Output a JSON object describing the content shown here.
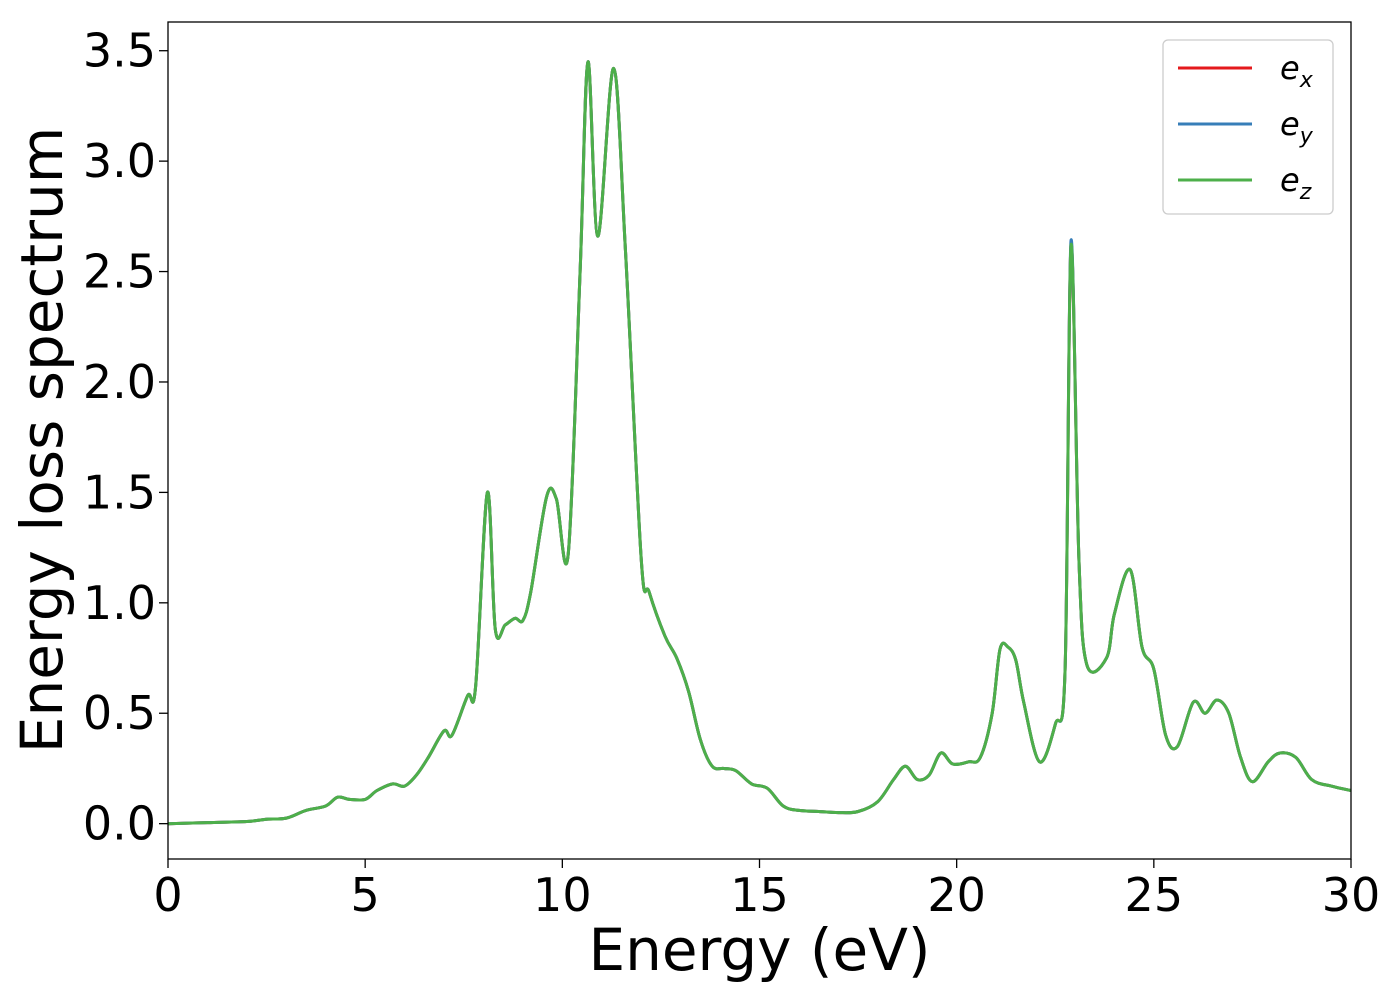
{
  "chart_data": {
    "type": "line",
    "title": "",
    "xlabel": "Energy (eV)",
    "ylabel": "Energy loss spectrum",
    "xlim": [
      0,
      30
    ],
    "ylim": [
      -0.16,
      3.63
    ],
    "x_ticks": [
      "0",
      "5",
      "10",
      "15",
      "20",
      "25",
      "30"
    ],
    "y_ticks": [
      "0.0",
      "0.5",
      "1.0",
      "1.5",
      "2.0",
      "2.5",
      "3.0",
      "3.5"
    ],
    "grid": false,
    "legend_position": "top-right",
    "series": [
      {
        "name": "e",
        "subscript": "x",
        "color": "#e41a1c"
      },
      {
        "name": "e",
        "subscript": "y",
        "color": "#377eb8"
      },
      {
        "name": "e",
        "subscript": "z",
        "color": "#4daf4a"
      }
    ],
    "x": [
      0,
      1,
      2,
      2.5,
      3,
      3.5,
      4,
      4.3,
      4.6,
      5,
      5.3,
      5.7,
      6,
      6.3,
      6.6,
      7,
      7.2,
      7.6,
      7.8,
      8.1,
      8.3,
      8.55,
      8.8,
      9,
      9.2,
      9.6,
      9.85,
      10.15,
      10.45,
      10.65,
      10.9,
      11.3,
      11.6,
      12,
      12.2,
      12.6,
      12.9,
      13.2,
      13.5,
      13.8,
      14.1,
      14.4,
      14.8,
      15.2,
      15.6,
      16,
      16.5,
      17,
      17.5,
      18,
      18.4,
      18.7,
      19,
      19.3,
      19.6,
      19.9,
      20.3,
      20.6,
      20.9,
      21.1,
      21.3,
      21.5,
      21.7,
      22.1,
      22.5,
      22.75,
      22.9,
      23.1,
      23.3,
      23.8,
      24,
      24.4,
      24.7,
      25,
      25.3,
      25.6,
      26,
      26.3,
      26.6,
      26.9,
      27.2,
      27.5,
      27.9,
      28.2,
      28.6,
      29,
      29.5,
      30
    ],
    "values": {
      "e_x": [
        0,
        0.005,
        0.01,
        0.02,
        0.025,
        0.06,
        0.08,
        0.12,
        0.11,
        0.11,
        0.15,
        0.18,
        0.17,
        0.22,
        0.3,
        0.42,
        0.4,
        0.58,
        0.62,
        1.5,
        0.88,
        0.9,
        0.93,
        0.92,
        1.05,
        1.48,
        1.47,
        1.22,
        2.5,
        3.45,
        2.66,
        3.42,
        2.6,
        1.2,
        1.05,
        0.85,
        0.75,
        0.6,
        0.38,
        0.26,
        0.25,
        0.24,
        0.18,
        0.16,
        0.08,
        0.06,
        0.055,
        0.05,
        0.055,
        0.1,
        0.2,
        0.26,
        0.2,
        0.22,
        0.32,
        0.27,
        0.28,
        0.3,
        0.5,
        0.79,
        0.8,
        0.74,
        0.55,
        0.28,
        0.45,
        0.7,
        2.62,
        1.2,
        0.72,
        0.75,
        0.95,
        1.15,
        0.8,
        0.7,
        0.4,
        0.35,
        0.55,
        0.5,
        0.56,
        0.5,
        0.3,
        0.19,
        0.28,
        0.32,
        0.3,
        0.2,
        0.17,
        0.15
      ],
      "e_y": [
        0,
        0.005,
        0.01,
        0.02,
        0.025,
        0.06,
        0.08,
        0.12,
        0.11,
        0.11,
        0.15,
        0.18,
        0.17,
        0.22,
        0.3,
        0.42,
        0.4,
        0.58,
        0.62,
        1.5,
        0.88,
        0.9,
        0.93,
        0.92,
        1.05,
        1.48,
        1.47,
        1.22,
        2.5,
        3.45,
        2.66,
        3.42,
        2.6,
        1.2,
        1.05,
        0.85,
        0.75,
        0.6,
        0.38,
        0.26,
        0.25,
        0.24,
        0.18,
        0.16,
        0.08,
        0.06,
        0.055,
        0.05,
        0.055,
        0.1,
        0.2,
        0.26,
        0.2,
        0.22,
        0.32,
        0.27,
        0.28,
        0.3,
        0.5,
        0.79,
        0.8,
        0.74,
        0.55,
        0.28,
        0.45,
        0.7,
        2.64,
        1.2,
        0.72,
        0.75,
        0.95,
        1.15,
        0.8,
        0.7,
        0.4,
        0.35,
        0.55,
        0.5,
        0.56,
        0.5,
        0.3,
        0.19,
        0.28,
        0.32,
        0.3,
        0.2,
        0.17,
        0.15
      ],
      "e_z": [
        0,
        0.005,
        0.01,
        0.02,
        0.025,
        0.06,
        0.08,
        0.12,
        0.11,
        0.11,
        0.15,
        0.18,
        0.17,
        0.22,
        0.3,
        0.42,
        0.4,
        0.58,
        0.62,
        1.5,
        0.88,
        0.9,
        0.93,
        0.92,
        1.05,
        1.48,
        1.47,
        1.22,
        2.5,
        3.45,
        2.66,
        3.42,
        2.6,
        1.2,
        1.05,
        0.85,
        0.75,
        0.6,
        0.38,
        0.26,
        0.25,
        0.24,
        0.18,
        0.16,
        0.08,
        0.06,
        0.055,
        0.05,
        0.055,
        0.1,
        0.2,
        0.26,
        0.2,
        0.22,
        0.32,
        0.27,
        0.28,
        0.3,
        0.5,
        0.79,
        0.8,
        0.74,
        0.55,
        0.28,
        0.45,
        0.7,
        2.62,
        1.2,
        0.72,
        0.75,
        0.95,
        1.15,
        0.8,
        0.7,
        0.4,
        0.35,
        0.55,
        0.5,
        0.56,
        0.5,
        0.3,
        0.19,
        0.28,
        0.32,
        0.3,
        0.2,
        0.17,
        0.15
      ]
    }
  }
}
